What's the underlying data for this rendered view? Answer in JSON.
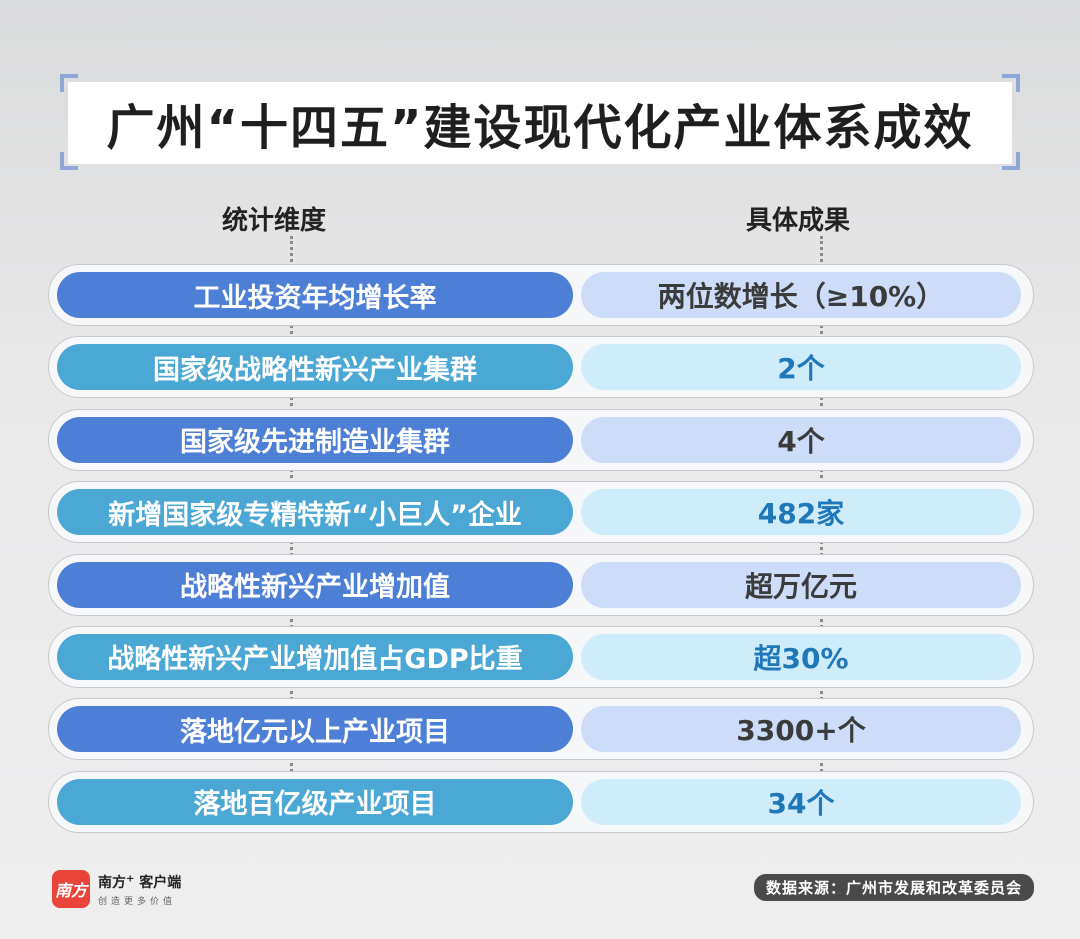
{
  "title": "广州“十四五”建设现代化产业体系成效",
  "headers": {
    "left": "统计维度",
    "right": "具体成果"
  },
  "rows": [
    {
      "label": "工业投资年均增长率",
      "value": "两位数增长（≥10%）"
    },
    {
      "label": "国家级战略性新兴产业集群",
      "value": "2个"
    },
    {
      "label": "国家级先进制造业集群",
      "value": "4个"
    },
    {
      "label": "新增国家级专精特新“小巨人”企业",
      "value": "482家"
    },
    {
      "label": "战略性新兴产业增加值",
      "value": "超万亿元"
    },
    {
      "label": "战略性新兴产业增加值占GDP比重",
      "value": "超30%"
    },
    {
      "label": "落地亿元以上产业项目",
      "value": "3300+个"
    },
    {
      "label": "落地百亿级产业项目",
      "value": "34个"
    }
  ],
  "footer": {
    "logo_mark": "南方",
    "logo_name": "南方",
    "logo_plus": "+",
    "logo_suffix": " 客户端",
    "logo_slogan": "创造更多价值",
    "source": "数据来源：广州市发展和改革委员会"
  },
  "colors": {
    "dark_pill": "#4d7fd6",
    "light_pill": "#4ba7d4",
    "dark_value_bg": "#cddcf8",
    "light_value_bg": "#cfecfb",
    "light_value_text": "#2178b9"
  }
}
